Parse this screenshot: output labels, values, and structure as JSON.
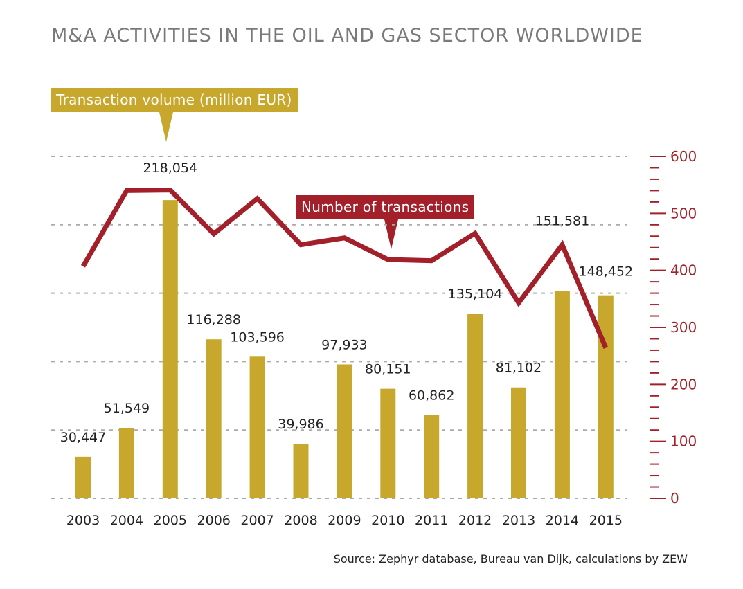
{
  "chart_data": {
    "type": "bar+line",
    "title": "M&A ACTIVITIES IN THE OIL AND GAS SECTOR WORLDWIDE",
    "source": "Source: Zephyr database, Bureau van Dijk, calculations by ZEW",
    "categories": [
      "2003",
      "2004",
      "2005",
      "2006",
      "2007",
      "2008",
      "2009",
      "2010",
      "2011",
      "2012",
      "2013",
      "2014",
      "2015"
    ],
    "series": [
      {
        "name": "Transaction volume (million EUR)",
        "type": "bar",
        "axis": "left",
        "color": "#c8a82c",
        "values": [
          30447,
          51549,
          218054,
          116288,
          103596,
          39986,
          97933,
          80151,
          60862,
          135104,
          81102,
          151581,
          148452
        ],
        "labels": [
          "30,447",
          "51,549",
          "218,054",
          "116,288",
          "103,596",
          "39,986",
          "97,933",
          "80,151",
          "60,862",
          "135,104",
          "81,102",
          "151,581",
          "148,452"
        ]
      },
      {
        "name": "Number of transactions",
        "type": "line",
        "axis": "right",
        "color": "#a3202a",
        "values": [
          407,
          540,
          541,
          464,
          526,
          445,
          457,
          419,
          417,
          465,
          343,
          445,
          264
        ]
      }
    ],
    "left_axis": {
      "range": [
        0,
        250000
      ],
      "grid_step": 50000,
      "labels_shown": false
    },
    "right_axis": {
      "range": [
        0,
        600
      ],
      "ticks": [
        "0",
        "100",
        "200",
        "300",
        "400",
        "500",
        "600"
      ],
      "minor_step": 20,
      "color": "#a3202a"
    },
    "grid": "dashed horizontal"
  }
}
